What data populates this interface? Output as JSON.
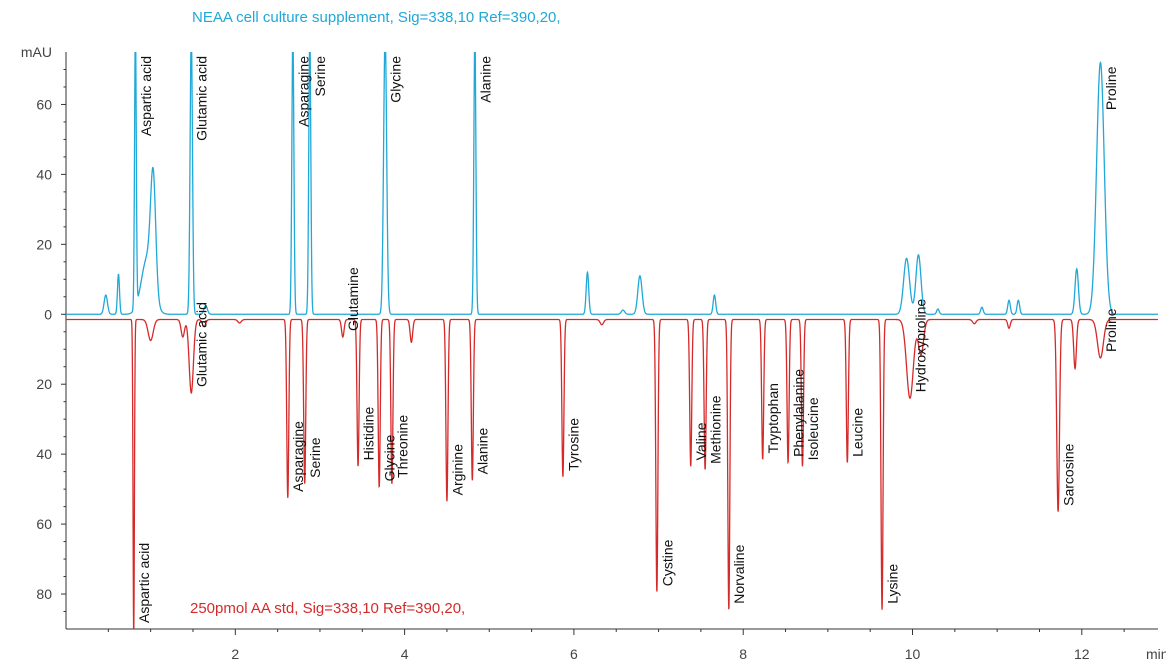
{
  "chart_data": {
    "type": "line",
    "ylabel": "mAU",
    "xlabel": "min",
    "xlim": [
      0,
      12.9
    ],
    "ylim": [
      -90,
      75
    ],
    "x_ticks": [
      2,
      4,
      6,
      8,
      10,
      12
    ],
    "y_ticks": [
      {
        "value": 60,
        "label": "60"
      },
      {
        "value": 40,
        "label": "40"
      },
      {
        "value": 20,
        "label": "20"
      },
      {
        "value": 0,
        "label": "0"
      },
      {
        "value": -20,
        "label": "20"
      },
      {
        "value": -40,
        "label": "40"
      },
      {
        "value": -60,
        "label": "60"
      },
      {
        "value": -80,
        "label": "80"
      }
    ],
    "colors": {
      "top": "#1fa8d8",
      "bottom": "#d62a2a",
      "axis": "#333333"
    },
    "series": [
      {
        "name": "NEAA cell culture supplement, Sig=338,10 Ref=390,20,",
        "color": "#1fa8d8",
        "direction": "up",
        "baseline": 0,
        "peaks": [
          {
            "x": 0.47,
            "h": 5.5,
            "w": 0.02
          },
          {
            "x": 0.62,
            "h": 11.5,
            "w": 0.012
          },
          {
            "x": 0.82,
            "h": 80,
            "w": 0.01,
            "label": "Aspartic acid"
          },
          {
            "x": 0.96,
            "h": 16,
            "w": 0.07
          },
          {
            "x": 1.03,
            "h": 32,
            "w": 0.03
          },
          {
            "x": 1.48,
            "h": 80,
            "w": 0.014,
            "label": "Glutamic acid"
          },
          {
            "x": 1.65,
            "h": 2.5,
            "w": 0.02
          },
          {
            "x": 2.68,
            "h": 80,
            "w": 0.012,
            "label": "Asparagine"
          },
          {
            "x": 2.88,
            "h": 80,
            "w": 0.012,
            "label": "Serine"
          },
          {
            "x": 3.77,
            "h": 80,
            "w": 0.018,
            "label": "Glycine"
          },
          {
            "x": 4.83,
            "h": 80,
            "w": 0.012,
            "label": "Alanine"
          },
          {
            "x": 6.16,
            "h": 12,
            "w": 0.015
          },
          {
            "x": 6.58,
            "h": 1.2,
            "w": 0.02
          },
          {
            "x": 6.78,
            "h": 11,
            "w": 0.025
          },
          {
            "x": 7.66,
            "h": 5.5,
            "w": 0.015
          },
          {
            "x": 9.93,
            "h": 16,
            "w": 0.035
          },
          {
            "x": 10.07,
            "h": 17,
            "w": 0.03
          },
          {
            "x": 10.3,
            "h": 1.5,
            "w": 0.015
          },
          {
            "x": 10.82,
            "h": 2,
            "w": 0.015
          },
          {
            "x": 11.14,
            "h": 4,
            "w": 0.015
          },
          {
            "x": 11.25,
            "h": 4,
            "w": 0.015
          },
          {
            "x": 11.94,
            "h": 13,
            "w": 0.02
          },
          {
            "x": 12.22,
            "h": 72,
            "w": 0.045,
            "label": "Proline"
          }
        ]
      },
      {
        "name": "250pmol AA std, Sig=338,10 Ref=390,20,",
        "color": "#d62a2a",
        "direction": "down",
        "baseline": -1.5,
        "peaks": [
          {
            "x": 0.8,
            "h": 90,
            "w": 0.008,
            "label": "Aspartic acid"
          },
          {
            "x": 1.0,
            "h": 6,
            "w": 0.03
          },
          {
            "x": 1.38,
            "h": 5,
            "w": 0.02
          },
          {
            "x": 1.48,
            "h": 21,
            "w": 0.025,
            "label": "Glutamic acid"
          },
          {
            "x": 1.63,
            "h": 2,
            "w": 0.02
          },
          {
            "x": 2.05,
            "h": 1.0,
            "w": 0.02
          },
          {
            "x": 2.62,
            "h": 51,
            "w": 0.012,
            "label": "Asparagine"
          },
          {
            "x": 2.82,
            "h": 47,
            "w": 0.012,
            "label": "Serine"
          },
          {
            "x": 3.27,
            "h": 5,
            "w": 0.015,
            "label": "Glutamine"
          },
          {
            "x": 3.45,
            "h": 42,
            "w": 0.012,
            "label": "Histidine"
          },
          {
            "x": 3.7,
            "h": 48,
            "w": 0.012,
            "label": "Glycine"
          },
          {
            "x": 3.85,
            "h": 47,
            "w": 0.012,
            "label": "Threonine"
          },
          {
            "x": 4.08,
            "h": 6.5,
            "w": 0.015
          },
          {
            "x": 4.5,
            "h": 52,
            "w": 0.012,
            "label": "Arginine"
          },
          {
            "x": 4.8,
            "h": 46,
            "w": 0.012,
            "label": "Alanine"
          },
          {
            "x": 5.87,
            "h": 45,
            "w": 0.012,
            "label": "Tyrosine"
          },
          {
            "x": 6.33,
            "h": 1.5,
            "w": 0.02
          },
          {
            "x": 6.98,
            "h": 78,
            "w": 0.012,
            "label": "Cystine"
          },
          {
            "x": 7.38,
            "h": 42,
            "w": 0.012,
            "label": "Valine"
          },
          {
            "x": 7.55,
            "h": 43,
            "w": 0.012,
            "label": "Methionine"
          },
          {
            "x": 7.83,
            "h": 83,
            "w": 0.012,
            "label": "Norvaline"
          },
          {
            "x": 8.23,
            "h": 40,
            "w": 0.012,
            "label": "Tryptophan"
          },
          {
            "x": 8.53,
            "h": 41,
            "w": 0.012,
            "label": "Phenylalanine"
          },
          {
            "x": 8.7,
            "h": 42,
            "w": 0.012,
            "label": "Isoleucine"
          },
          {
            "x": 9.23,
            "h": 41,
            "w": 0.012,
            "label": "Leucine"
          },
          {
            "x": 9.64,
            "h": 83,
            "w": 0.012,
            "label": "Lysine"
          },
          {
            "x": 9.97,
            "h": 22.5,
            "w": 0.04,
            "label": "Hydroxyproline"
          },
          {
            "x": 10.1,
            "h": 10,
            "w": 0.03
          },
          {
            "x": 10.73,
            "h": 1.2,
            "w": 0.02
          },
          {
            "x": 11.14,
            "h": 2.5,
            "w": 0.015
          },
          {
            "x": 11.72,
            "h": 55,
            "w": 0.016,
            "label": "Sarcosine"
          },
          {
            "x": 11.92,
            "h": 14,
            "w": 0.016
          },
          {
            "x": 12.22,
            "h": 11,
            "w": 0.035,
            "label": "Proline"
          }
        ]
      }
    ]
  }
}
